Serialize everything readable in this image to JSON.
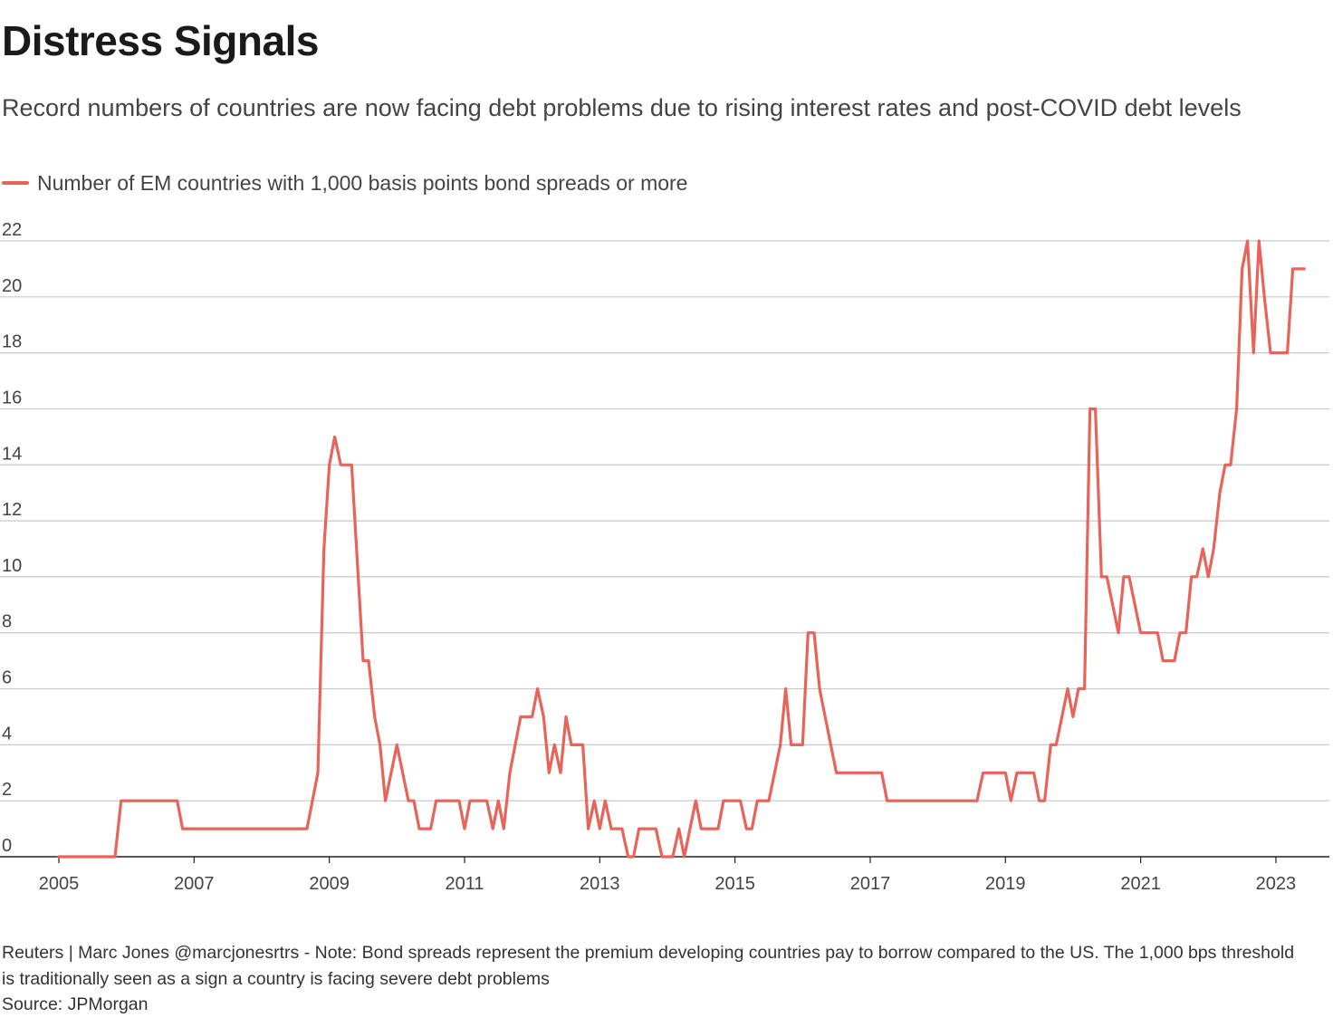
{
  "header": {
    "title": "Distress Signals",
    "subtitle": "Record numbers of countries are now facing debt problems due to rising interest rates and post-COVID debt levels"
  },
  "legend": {
    "label": "Number of EM countries with 1,000 basis points bond spreads or more",
    "color": "#e8635a"
  },
  "footer": {
    "note": "Reuters | Marc Jones @marcjonesrtrs - Note: Bond spreads represent the premium developing countries pay to borrow compared to the US. The 1,000 bps threshold is traditionally seen as a sign a country is facing severe debt problems",
    "source": "Source: JPMorgan"
  },
  "chart_data": {
    "type": "line",
    "title": "Distress Signals",
    "xlabel": "",
    "ylabel": "",
    "xlim": [
      2005.0,
      2023.55
    ],
    "ylim": [
      0,
      22
    ],
    "x_ticks": [
      "2005",
      "2007",
      "2009",
      "2011",
      "2013",
      "2015",
      "2017",
      "2019",
      "2021",
      "2023"
    ],
    "y_ticks": [
      "0",
      "2",
      "4",
      "6",
      "8",
      "10",
      "12",
      "14",
      "16",
      "18",
      "20",
      "22"
    ],
    "grid": true,
    "legend_position": "top-left",
    "series": [
      {
        "name": "Number of EM countries with 1,000 basis points bond spreads or more",
        "color": "#e8635a",
        "points": [
          [
            2005.0,
            0
          ],
          [
            2005.83,
            0
          ],
          [
            2005.92,
            2
          ],
          [
            2006.75,
            2
          ],
          [
            2006.83,
            1
          ],
          [
            2008.67,
            1
          ],
          [
            2008.83,
            3
          ],
          [
            2008.92,
            11
          ],
          [
            2009.0,
            14
          ],
          [
            2009.08,
            15
          ],
          [
            2009.17,
            14
          ],
          [
            2009.33,
            14
          ],
          [
            2009.5,
            7
          ],
          [
            2009.58,
            7
          ],
          [
            2009.67,
            5
          ],
          [
            2009.75,
            4
          ],
          [
            2009.83,
            2
          ],
          [
            2010.0,
            4
          ],
          [
            2010.17,
            2
          ],
          [
            2010.25,
            2
          ],
          [
            2010.33,
            1
          ],
          [
            2010.5,
            1
          ],
          [
            2010.58,
            2
          ],
          [
            2010.92,
            2
          ],
          [
            2011.0,
            1
          ],
          [
            2011.08,
            2
          ],
          [
            2011.33,
            2
          ],
          [
            2011.42,
            1
          ],
          [
            2011.5,
            2
          ],
          [
            2011.58,
            1
          ],
          [
            2011.67,
            3
          ],
          [
            2011.83,
            5
          ],
          [
            2012.0,
            5
          ],
          [
            2012.08,
            6
          ],
          [
            2012.17,
            5
          ],
          [
            2012.25,
            3
          ],
          [
            2012.33,
            4
          ],
          [
            2012.42,
            3
          ],
          [
            2012.5,
            5
          ],
          [
            2012.58,
            4
          ],
          [
            2012.75,
            4
          ],
          [
            2012.83,
            1
          ],
          [
            2012.92,
            2
          ],
          [
            2013.0,
            1
          ],
          [
            2013.08,
            2
          ],
          [
            2013.17,
            1
          ],
          [
            2013.33,
            1
          ],
          [
            2013.42,
            0
          ],
          [
            2013.5,
            0
          ],
          [
            2013.58,
            1
          ],
          [
            2013.83,
            1
          ],
          [
            2013.92,
            0
          ],
          [
            2014.08,
            0
          ],
          [
            2014.17,
            1
          ],
          [
            2014.25,
            0
          ],
          [
            2014.42,
            2
          ],
          [
            2014.5,
            1
          ],
          [
            2014.75,
            1
          ],
          [
            2014.83,
            2
          ],
          [
            2015.08,
            2
          ],
          [
            2015.17,
            1
          ],
          [
            2015.25,
            1
          ],
          [
            2015.33,
            2
          ],
          [
            2015.5,
            2
          ],
          [
            2015.67,
            4
          ],
          [
            2015.75,
            6
          ],
          [
            2015.83,
            4
          ],
          [
            2016.0,
            4
          ],
          [
            2016.08,
            8
          ],
          [
            2016.17,
            8
          ],
          [
            2016.25,
            6
          ],
          [
            2016.5,
            3
          ],
          [
            2017.17,
            3
          ],
          [
            2017.25,
            2
          ],
          [
            2018.58,
            2
          ],
          [
            2018.67,
            3
          ],
          [
            2019.0,
            3
          ],
          [
            2019.08,
            2
          ],
          [
            2019.17,
            3
          ],
          [
            2019.42,
            3
          ],
          [
            2019.5,
            2
          ],
          [
            2019.58,
            2
          ],
          [
            2019.67,
            4
          ],
          [
            2019.75,
            4
          ],
          [
            2019.92,
            6
          ],
          [
            2020.0,
            5
          ],
          [
            2020.08,
            6
          ],
          [
            2020.17,
            6
          ],
          [
            2020.25,
            16
          ],
          [
            2020.33,
            16
          ],
          [
            2020.42,
            10
          ],
          [
            2020.5,
            10
          ],
          [
            2020.67,
            8
          ],
          [
            2020.75,
            10
          ],
          [
            2020.83,
            10
          ],
          [
            2021.0,
            8
          ],
          [
            2021.25,
            8
          ],
          [
            2021.33,
            7
          ],
          [
            2021.5,
            7
          ],
          [
            2021.58,
            8
          ],
          [
            2021.67,
            8
          ],
          [
            2021.75,
            10
          ],
          [
            2021.83,
            10
          ],
          [
            2021.92,
            11
          ],
          [
            2022.0,
            10
          ],
          [
            2022.08,
            11
          ],
          [
            2022.17,
            13
          ],
          [
            2022.25,
            14
          ],
          [
            2022.33,
            14
          ],
          [
            2022.42,
            16
          ],
          [
            2022.5,
            21
          ],
          [
            2022.58,
            22
          ],
          [
            2022.67,
            18
          ],
          [
            2022.75,
            22
          ],
          [
            2022.83,
            20
          ],
          [
            2022.92,
            18
          ],
          [
            2023.17,
            18
          ],
          [
            2023.25,
            21
          ],
          [
            2023.42,
            21
          ]
        ]
      }
    ]
  }
}
